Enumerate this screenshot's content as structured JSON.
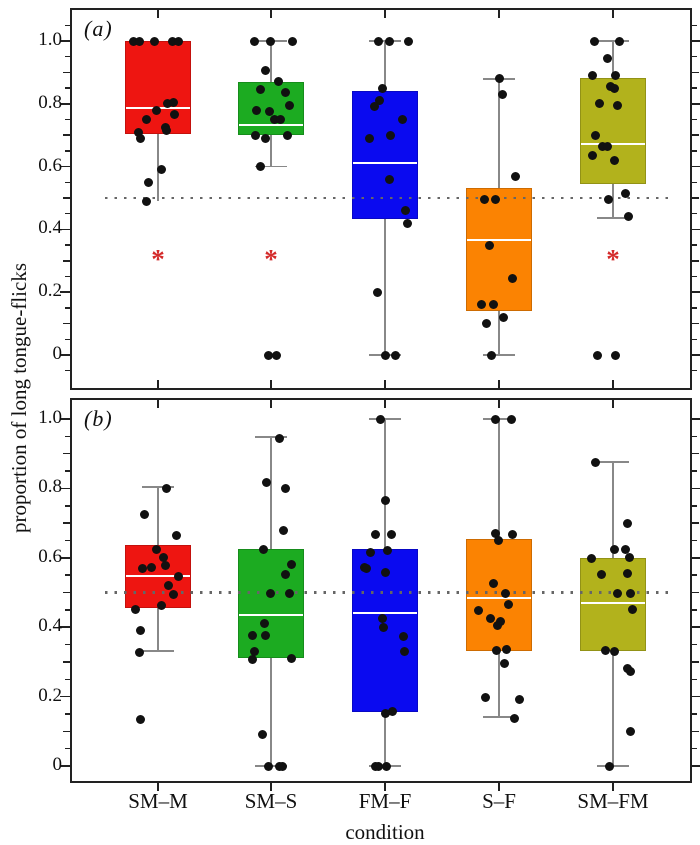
{
  "chart_data": {
    "type": "boxplot",
    "ylabel": "proportion of long tongue-flicks",
    "xlabel": "condition",
    "ylim": [
      0,
      1
    ],
    "grid": false,
    "reference_line_y": 0.5,
    "reference_line_color": "#666666",
    "categories": [
      "SM–M",
      "SM–S",
      "FM–F",
      "S–F",
      "SM–FM"
    ],
    "yticks": [
      {
        "value": 1.0,
        "label": "1.0"
      },
      {
        "value": 0.8,
        "label": "0.8"
      },
      {
        "value": 0.6,
        "label": "0.6"
      },
      {
        "value": 0.4,
        "label": "0.4"
      },
      {
        "value": 0.2,
        "label": "0.2"
      },
      {
        "value": 0.0,
        "label": "0"
      }
    ],
    "significance_marker": {
      "symbol": "*",
      "color": "#d42a2a",
      "y": 0.315
    },
    "point_color": "#111111",
    "panels": [
      {
        "id": "a",
        "label": "(a)",
        "groups": [
          {
            "condition": "SM–M",
            "color": "#ee1511",
            "significant": true,
            "box": {
              "q1": 0.705,
              "median": 0.787,
              "q3": 1.0,
              "whisker_low": 0.49,
              "whisker_high": 1.0,
              "cap_low": false,
              "cap_high": false
            },
            "points": [
              [
                -25,
                1.0
              ],
              [
                -19,
                1.0
              ],
              [
                -4,
                1.0
              ],
              [
                14,
                1.0
              ],
              [
                20,
                1.0
              ],
              [
                9,
                0.8
              ],
              [
                15,
                0.805
              ],
              [
                -2,
                0.78
              ],
              [
                16,
                0.765
              ],
              [
                -12,
                0.75
              ],
              [
                7,
                0.725
              ],
              [
                8,
                0.715
              ],
              [
                -20,
                0.71
              ],
              [
                -18,
                0.69
              ],
              [
                3,
                0.59
              ],
              [
                -10,
                0.55
              ],
              [
                -12,
                0.49
              ]
            ]
          },
          {
            "condition": "SM–S",
            "color": "#1cab21",
            "significant": true,
            "box": {
              "q1": 0.7,
              "median": 0.732,
              "q3": 0.868,
              "whisker_low": 0.6,
              "whisker_high": 1.0,
              "cap_low": true,
              "cap_high": true
            },
            "points": [
              [
                -17,
                1.0
              ],
              [
                -1,
                1.0
              ],
              [
                21,
                1.0
              ],
              [
                -6,
                0.905
              ],
              [
                7,
                0.87
              ],
              [
                -11,
                0.845
              ],
              [
                14,
                0.835
              ],
              [
                18,
                0.795
              ],
              [
                -15,
                0.78
              ],
              [
                -2,
                0.775
              ],
              [
                3,
                0.75
              ],
              [
                9,
                0.75
              ],
              [
                -16,
                0.7
              ],
              [
                16,
                0.7
              ],
              [
                -6,
                0.69
              ],
              [
                -11,
                0.6
              ],
              [
                -3,
                0.0
              ],
              [
                5,
                0.0
              ]
            ]
          },
          {
            "condition": "FM–F",
            "color": "#0a0af0",
            "significant": false,
            "box": {
              "q1": 0.432,
              "median": 0.612,
              "q3": 0.84,
              "whisker_low": 0.0,
              "whisker_high": 1.0,
              "cap_low": true,
              "cap_high": true
            },
            "points": [
              [
                -7,
                1.0
              ],
              [
                4,
                1.0
              ],
              [
                23,
                1.0
              ],
              [
                -3,
                0.85
              ],
              [
                -6,
                0.81
              ],
              [
                -11,
                0.79
              ],
              [
                17,
                0.75
              ],
              [
                5,
                0.7
              ],
              [
                -16,
                0.69
              ],
              [
                4,
                0.56
              ],
              [
                20,
                0.46
              ],
              [
                22,
                0.42
              ],
              [
                -8,
                0.2
              ],
              [
                0,
                0.0
              ],
              [
                10,
                0.0
              ]
            ]
          },
          {
            "condition": "S–F",
            "color": "#fb8302",
            "significant": false,
            "box": {
              "q1": 0.14,
              "median": 0.366,
              "q3": 0.532,
              "whisker_low": 0.0,
              "whisker_high": 0.879,
              "cap_low": true,
              "cap_high": true
            },
            "points": [
              [
                0,
                0.879
              ],
              [
                3,
                0.83
              ],
              [
                16,
                0.57
              ],
              [
                -15,
                0.494
              ],
              [
                -4,
                0.494
              ],
              [
                -10,
                0.35
              ],
              [
                13,
                0.245
              ],
              [
                -18,
                0.162
              ],
              [
                -6,
                0.162
              ],
              [
                4,
                0.12
              ],
              [
                -13,
                0.1
              ],
              [
                -8,
                0.0
              ]
            ]
          },
          {
            "condition": "SM–FM",
            "color": "#b2b21c",
            "significant": true,
            "box": {
              "q1": 0.545,
              "median": 0.672,
              "q3": 0.882,
              "whisker_low": 0.436,
              "whisker_high": 1.0,
              "cap_low": true,
              "cap_high": true
            },
            "points": [
              [
                -19,
                1.0
              ],
              [
                6,
                1.0
              ],
              [
                -6,
                0.945
              ],
              [
                -21,
                0.89
              ],
              [
                2,
                0.89
              ],
              [
                -3,
                0.855
              ],
              [
                1,
                0.85
              ],
              [
                -14,
                0.8
              ],
              [
                4,
                0.795
              ],
              [
                -18,
                0.7
              ],
              [
                -11,
                0.665
              ],
              [
                -6,
                0.663
              ],
              [
                -21,
                0.635
              ],
              [
                1,
                0.62
              ],
              [
                12,
                0.515
              ],
              [
                -5,
                0.494
              ],
              [
                15,
                0.44
              ],
              [
                -16,
                0.0
              ],
              [
                2,
                0.0
              ]
            ]
          }
        ]
      },
      {
        "id": "b",
        "label": "(b)",
        "groups": [
          {
            "condition": "SM–M",
            "color": "#ee1511",
            "significant": false,
            "box": {
              "q1": 0.455,
              "median": 0.548,
              "q3": 0.637,
              "whisker_low": 0.331,
              "whisker_high": 0.804,
              "cap_low": true,
              "cap_high": true
            },
            "points": [
              [
                8,
                0.8
              ],
              [
                -14,
                0.725
              ],
              [
                18,
                0.665
              ],
              [
                -2,
                0.623
              ],
              [
                5,
                0.6
              ],
              [
                7,
                0.577
              ],
              [
                -7,
                0.571
              ],
              [
                -16,
                0.568
              ],
              [
                20,
                0.545
              ],
              [
                10,
                0.52
              ],
              [
                15,
                0.494
              ],
              [
                3,
                0.462
              ],
              [
                -23,
                0.45
              ],
              [
                -18,
                0.39
              ],
              [
                -19,
                0.328
              ],
              [
                -18,
                0.133
              ]
            ]
          },
          {
            "condition": "SM–S",
            "color": "#1cab21",
            "significant": false,
            "box": {
              "q1": 0.311,
              "median": 0.435,
              "q3": 0.625,
              "whisker_low": 0.0,
              "whisker_high": 0.948,
              "cap_low": true,
              "cap_high": true
            },
            "points": [
              [
                8,
                0.943
              ],
              [
                -5,
                0.818
              ],
              [
                14,
                0.8
              ],
              [
                12,
                0.68
              ],
              [
                -8,
                0.625
              ],
              [
                20,
                0.582
              ],
              [
                14,
                0.553
              ],
              [
                -1,
                0.496
              ],
              [
                18,
                0.496
              ],
              [
                -7,
                0.412
              ],
              [
                -6,
                0.377
              ],
              [
                -19,
                0.375
              ],
              [
                -17,
                0.331
              ],
              [
                20,
                0.311
              ],
              [
                -19,
                0.308
              ],
              [
                -9,
                0.092
              ],
              [
                -3,
                0.0
              ],
              [
                8,
                0.0
              ],
              [
                11,
                0.0
              ]
            ]
          },
          {
            "condition": "FM–F",
            "color": "#0a0af0",
            "significant": false,
            "box": {
              "q1": 0.156,
              "median": 0.441,
              "q3": 0.625,
              "whisker_low": 0.0,
              "whisker_high": 1.0,
              "cap_low": true,
              "cap_high": true
            },
            "points": [
              [
                -5,
                1.0
              ],
              [
                0,
                0.764
              ],
              [
                -10,
                0.666
              ],
              [
                6,
                0.666
              ],
              [
                2,
                0.62
              ],
              [
                -15,
                0.614
              ],
              [
                -21,
                0.573
              ],
              [
                -19,
                0.568
              ],
              [
                0,
                0.559
              ],
              [
                -3,
                0.426
              ],
              [
                -2,
                0.398
              ],
              [
                18,
                0.372
              ],
              [
                19,
                0.331
              ],
              [
                7,
                0.156
              ],
              [
                0,
                0.15
              ],
              [
                -10,
                0.0
              ],
              [
                -7,
                0.0
              ],
              [
                1,
                0.0
              ]
            ]
          },
          {
            "condition": "S–F",
            "color": "#fb8302",
            "significant": false,
            "box": {
              "q1": 0.331,
              "median": 0.484,
              "q3": 0.654,
              "whisker_low": 0.141,
              "whisker_high": 1.0,
              "cap_low": true,
              "cap_high": true
            },
            "points": [
              [
                -4,
                1.0
              ],
              [
                12,
                1.0
              ],
              [
                -4,
                0.669
              ],
              [
                13,
                0.666
              ],
              [
                -1,
                0.651
              ],
              [
                -6,
                0.525
              ],
              [
                6,
                0.496
              ],
              [
                9,
                0.464
              ],
              [
                -21,
                0.447
              ],
              [
                -9,
                0.426
              ],
              [
                1,
                0.417
              ],
              [
                -2,
                0.406
              ],
              [
                7,
                0.337
              ],
              [
                -3,
                0.334
              ],
              [
                5,
                0.294
              ],
              [
                -14,
                0.196
              ],
              [
                20,
                0.193
              ],
              [
                15,
                0.138
              ]
            ]
          },
          {
            "condition": "SM–FM",
            "color": "#b2b21c",
            "significant": false,
            "box": {
              "q1": 0.331,
              "median": 0.47,
              "q3": 0.6,
              "whisker_low": 0.0,
              "whisker_high": 0.876,
              "cap_low": true,
              "cap_high": true
            },
            "points": [
              [
                -18,
                0.876
              ],
              [
                14,
                0.7
              ],
              [
                1,
                0.625
              ],
              [
                12,
                0.625
              ],
              [
                16,
                0.602
              ],
              [
                -22,
                0.597
              ],
              [
                14,
                0.556
              ],
              [
                -12,
                0.553
              ],
              [
                4,
                0.496
              ],
              [
                17,
                0.496
              ],
              [
                19,
                0.452
              ],
              [
                -8,
                0.334
              ],
              [
                1,
                0.331
              ],
              [
                14,
                0.28
              ],
              [
                17,
                0.271
              ],
              [
                17,
                0.098
              ],
              [
                -4,
                0.0
              ]
            ]
          }
        ]
      }
    ]
  }
}
